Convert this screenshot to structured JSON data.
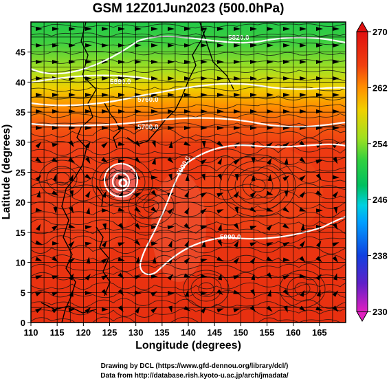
{
  "title": "GSM 12Z01Jun2023 (500.0hPa)",
  "xlabel": "Longitude (degrees)",
  "ylabel": "Latitude  (degrees)",
  "x_ticks": [
    "110",
    "115",
    "120",
    "125",
    "130",
    "135",
    "140",
    "145",
    "150",
    "155",
    "160",
    "165"
  ],
  "y_ticks": [
    "0",
    "5",
    "10",
    "15",
    "20",
    "25",
    "30",
    "35",
    "40",
    "45"
  ],
  "colorbar": {
    "ticks": [
      "270",
      "262",
      "254",
      "246",
      "238",
      "230"
    ],
    "colors": {
      "c230": "#e020c0",
      "c235": "#6020c8",
      "c238": "#1040e0",
      "c242": "#00a0ff",
      "c246": "#00d0e0",
      "c250": "#00c060",
      "c254": "#30d040",
      "c258": "#a0e020",
      "c262": "#f0d000",
      "c265": "#ff9000",
      "c268": "#f04010",
      "c270": "#e01010"
    }
  },
  "contour_labels": [
    "5820.0",
    "5760.0",
    "5700.0",
    "5880.0",
    "5850.0",
    "5900.0",
    "5900.0",
    "5900.0"
  ],
  "credits": [
    "Drawing by DCL (https://www.gfd-dennou.org/library/dcl/)",
    "Data from http://database.rish.kyoto-u.ac.jp/arch/jmadata/"
  ],
  "chart_data": {
    "type": "heatmap",
    "title": "GSM 12Z01Jun2023 (500.0hPa)",
    "xlabel": "Longitude (degrees)",
    "ylabel": "Latitude  (degrees)",
    "xlim": [
      110,
      170
    ],
    "ylim": [
      0,
      50
    ],
    "color_range": [
      230,
      270
    ],
    "contour_levels": [
      5700,
      5760,
      5820,
      5880,
      5900
    ],
    "temperature_bands": [
      {
        "lat": 49,
        "value": 252
      },
      {
        "lat": 45,
        "value": 255
      },
      {
        "lat": 42,
        "value": 258
      },
      {
        "lat": 39.5,
        "value": 262
      },
      {
        "lat": 37,
        "value": 265
      },
      {
        "lat": 34,
        "value": 268
      },
      {
        "lat": 0,
        "value": 269
      }
    ]
  }
}
